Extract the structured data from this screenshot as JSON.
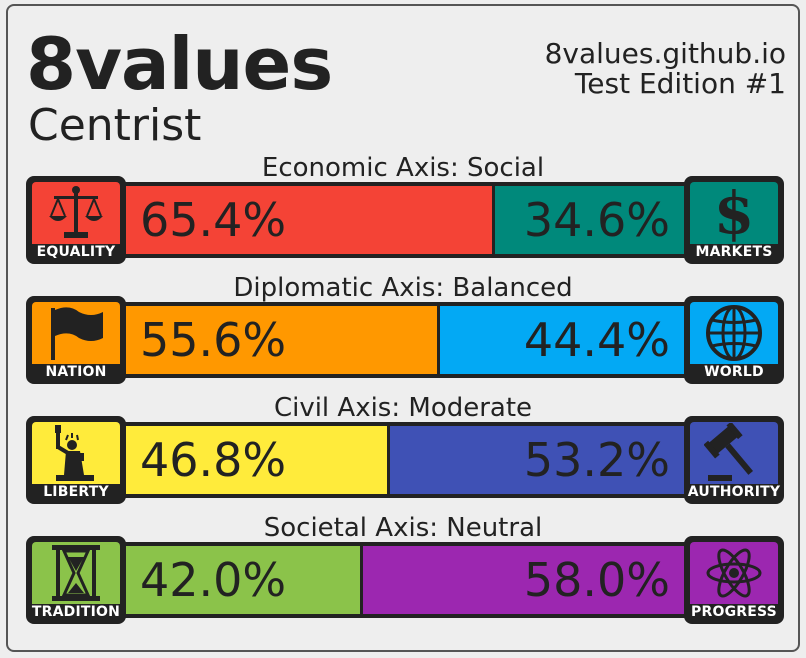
{
  "header": {
    "title": "8values",
    "subtitle": "Centrist",
    "site": "8values.github.io",
    "edition": "Test Edition #1"
  },
  "axes": [
    {
      "label": "Economic Axis: Social",
      "left": {
        "name": "EQUALITY",
        "percent": "65.4%",
        "value": 65.4,
        "color": "#f44336",
        "icon": "scales-icon"
      },
      "right": {
        "name": "MARKETS",
        "percent": "34.6%",
        "value": 34.6,
        "color": "#00897b",
        "icon": "dollar-icon"
      }
    },
    {
      "label": "Diplomatic Axis: Balanced",
      "left": {
        "name": "NATION",
        "percent": "55.6%",
        "value": 55.6,
        "color": "#ff9800",
        "icon": "flag-icon"
      },
      "right": {
        "name": "WORLD",
        "percent": "44.4%",
        "value": 44.4,
        "color": "#03a9f4",
        "icon": "globe-icon"
      }
    },
    {
      "label": "Civil Axis: Moderate",
      "left": {
        "name": "LIBERTY",
        "percent": "46.8%",
        "value": 46.8,
        "color": "#ffeb3b",
        "icon": "statue-of-liberty-icon"
      },
      "right": {
        "name": "AUTHORITY",
        "percent": "53.2%",
        "value": 53.2,
        "color": "#3f51b5",
        "icon": "gavel-icon"
      }
    },
    {
      "label": "Societal Axis: Neutral",
      "left": {
        "name": "TRADITION",
        "percent": "42.0%",
        "value": 42.0,
        "color": "#8bc34a",
        "icon": "hourglass-icon"
      },
      "right": {
        "name": "PROGRESS",
        "percent": "58.0%",
        "value": 58.0,
        "color": "#9c27b0",
        "icon": "atom-icon"
      }
    }
  ]
}
